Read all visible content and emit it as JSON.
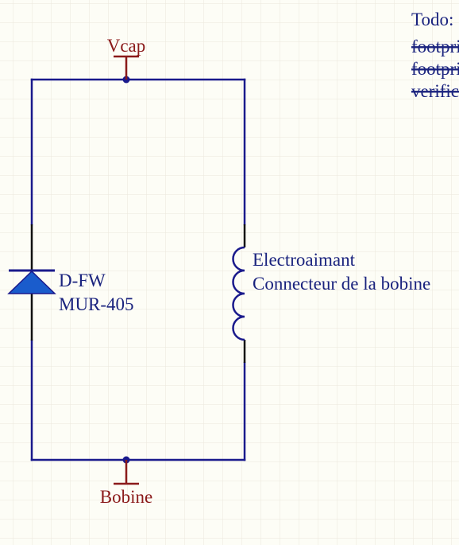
{
  "colors": {
    "background": "#fdfdf6",
    "grid": "#ece8dc",
    "wire": "#1a1a8c",
    "component": "#1a1a8c",
    "junction": "#1a1a8c",
    "power_port": "#8b1a1a",
    "net_label": "#8b1a1a",
    "part_text": "#1a237e"
  },
  "net_labels": {
    "top": "Vcap",
    "bottom": "Bobine"
  },
  "diode": {
    "designator": "D-FW",
    "value": "MUR-405"
  },
  "inductor": {
    "designator": "Electroaimant",
    "description": "Connecteur de la bobine"
  },
  "todo": {
    "title": "Todo:",
    "items": [
      {
        "text": "footprint",
        "done": true
      },
      {
        "text": "footprint",
        "done": true
      },
      {
        "text": "verification",
        "done": true
      }
    ]
  }
}
